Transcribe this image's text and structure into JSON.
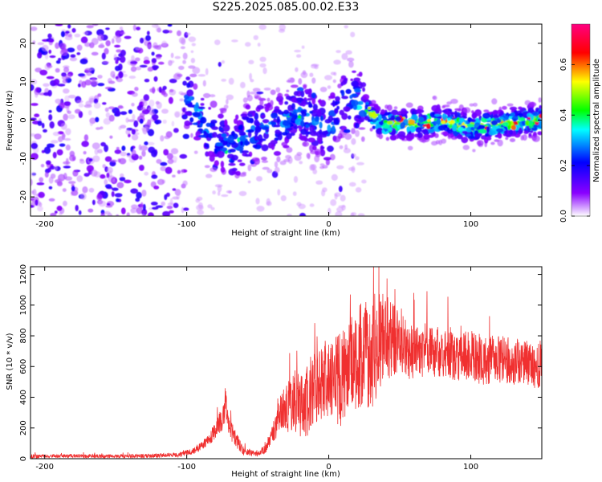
{
  "title": "S225.2025.085.00.02.E33",
  "chart_data": [
    {
      "type": "heatmap",
      "xlabel": "Height of straight line (km)",
      "ylabel": "Frequency (Hz)",
      "xlim": [
        -210,
        150
      ],
      "ylim": [
        -25,
        25
      ],
      "x_ticks": [
        -200,
        -100,
        0,
        100
      ],
      "y_ticks": [
        -20,
        -10,
        0,
        10,
        20
      ],
      "colorbar": {
        "label": "Normalized spectral amplitude",
        "range": [
          0.0,
          0.76
        ],
        "ticks": [
          "0.0",
          "0.2",
          "0.4",
          "0.6"
        ],
        "colormap": [
          "#ffffff",
          "#8a00ff",
          "#0000ff",
          "#00ffff",
          "#00ff00",
          "#ffff00",
          "#ff0000",
          "#ff0080"
        ]
      },
      "ridge": [
        {
          "x": -210,
          "f": 0
        },
        {
          "x": -105,
          "f": 9
        },
        {
          "x": -95,
          "f": 3
        },
        {
          "x": -85,
          "f": -3
        },
        {
          "x": -75,
          "f": -5
        },
        {
          "x": -68,
          "f": -8
        },
        {
          "x": -55,
          "f": -3
        },
        {
          "x": -40,
          "f": -2
        },
        {
          "x": -20,
          "f": 2
        },
        {
          "x": 0,
          "f": -3
        },
        {
          "x": 10,
          "f": 4
        },
        {
          "x": 20,
          "f": 6
        },
        {
          "x": 30,
          "f": 1
        },
        {
          "x": 40,
          "f": -1
        },
        {
          "x": 60,
          "f": -1
        },
        {
          "x": 80,
          "f": 0
        },
        {
          "x": 100,
          "f": -2
        },
        {
          "x": 120,
          "f": -1
        },
        {
          "x": 150,
          "f": 0
        }
      ],
      "peak_region": {
        "x_start": 25,
        "x_end": 150,
        "f": -1,
        "max_amplitude": 0.76
      }
    },
    {
      "type": "line",
      "xlabel": "Height of straight line (km)",
      "ylabel": "SNR (10 * v/v)",
      "xlim": [
        -210,
        150
      ],
      "ylim": [
        0,
        1250
      ],
      "x_ticks": [
        -200,
        -100,
        0,
        100
      ],
      "y_ticks": [
        0,
        200,
        400,
        600,
        800,
        1000,
        1200
      ],
      "color": "#f03030",
      "series": [
        {
          "x": [
            -210,
            -180,
            -150,
            -120,
            -105,
            -95,
            -85,
            -80,
            -75,
            -72,
            -70,
            -65,
            -60,
            -50,
            -45,
            -40,
            -35,
            -30,
            -25,
            -20,
            -10,
            0,
            10,
            20,
            30,
            40,
            50,
            60,
            70,
            80,
            90,
            100,
            110,
            120,
            130,
            140,
            150
          ],
          "values": [
            15,
            18,
            15,
            20,
            25,
            50,
            120,
            180,
            260,
            350,
            200,
            120,
            50,
            30,
            60,
            150,
            280,
            320,
            380,
            330,
            450,
            480,
            520,
            650,
            700,
            780,
            730,
            700,
            720,
            680,
            660,
            670,
            640,
            650,
            630,
            620,
            600
          ],
          "spread": [
            12,
            12,
            12,
            14,
            15,
            20,
            40,
            60,
            80,
            90,
            70,
            50,
            25,
            15,
            30,
            60,
            120,
            160,
            200,
            220,
            260,
            280,
            320,
            340,
            380,
            300,
            220,
            180,
            180,
            160,
            160,
            170,
            160,
            160,
            150,
            150,
            150
          ]
        }
      ]
    }
  ]
}
